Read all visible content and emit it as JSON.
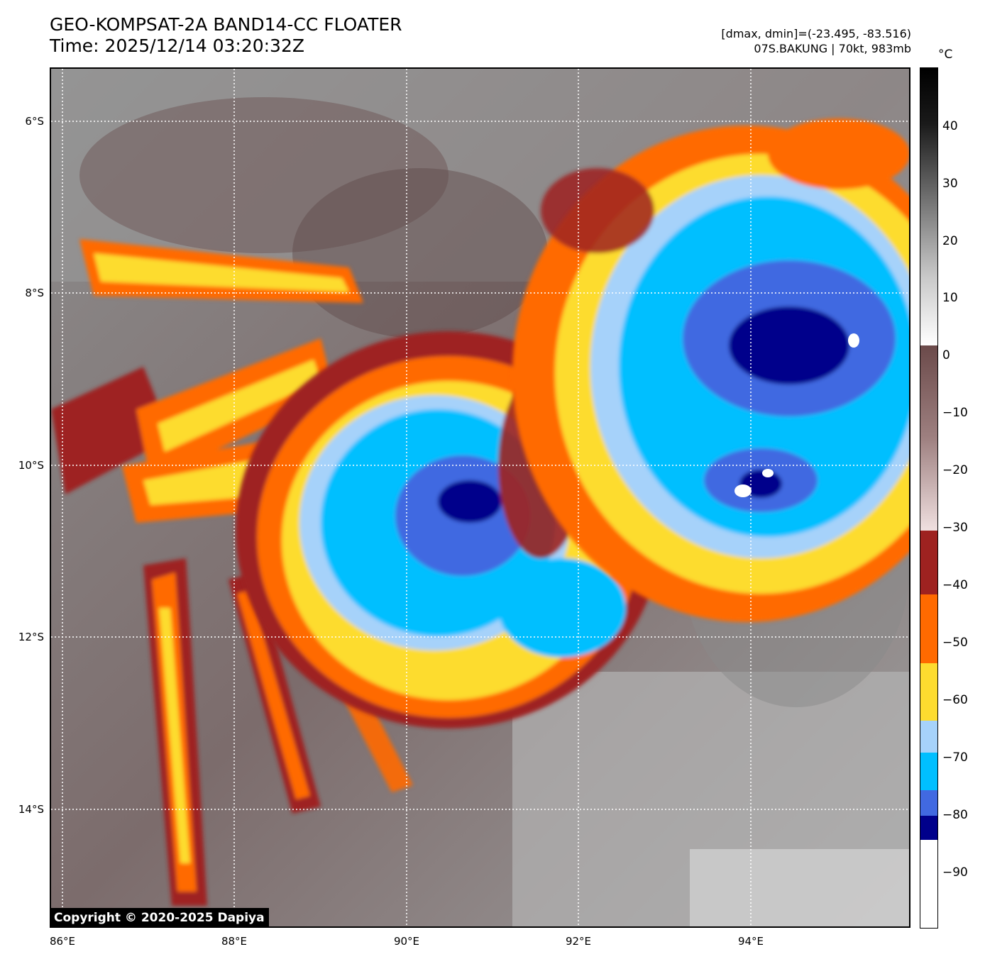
{
  "header": {
    "title_line1": "GEO-KOMPSAT-2A BAND14-CC FLOATER",
    "title_line2": "Time: 2025/12/14 03:20:32Z",
    "range_text": "[dmax, dmin]=(-23.495, -83.516)",
    "storm_text": "07S.BAKUNG | 70kt, 983mb"
  },
  "map": {
    "lat_labels": [
      "6°S",
      "8°S",
      "10°S",
      "12°S",
      "14°S"
    ],
    "lon_labels": [
      "86°E",
      "88°E",
      "90°E",
      "92°E",
      "94°E"
    ],
    "copyright": "Copyright © 2020-2025 Dapiya"
  },
  "colorbar": {
    "unit": "°C",
    "tick_labels": [
      "40",
      "30",
      "20",
      "10",
      "0",
      "−10",
      "−20",
      "−30",
      "−40",
      "−50",
      "−60",
      "−70",
      "−80",
      "−90"
    ],
    "colors": {
      "below_minus80": "#00008b",
      "minus80_to_minus75": "#4169e1",
      "minus75_to_minus70": "#00bfff",
      "minus70_to_minus65": "#a6d2fa",
      "minus65_to_minus55": "#fddc2f",
      "minus55_to_minus43": "#ff6a00",
      "minus43_to_minus32": "#9e2220",
      "warm_low": "#6b4a4a",
      "warm_high": "#f0e0e0"
    }
  }
}
